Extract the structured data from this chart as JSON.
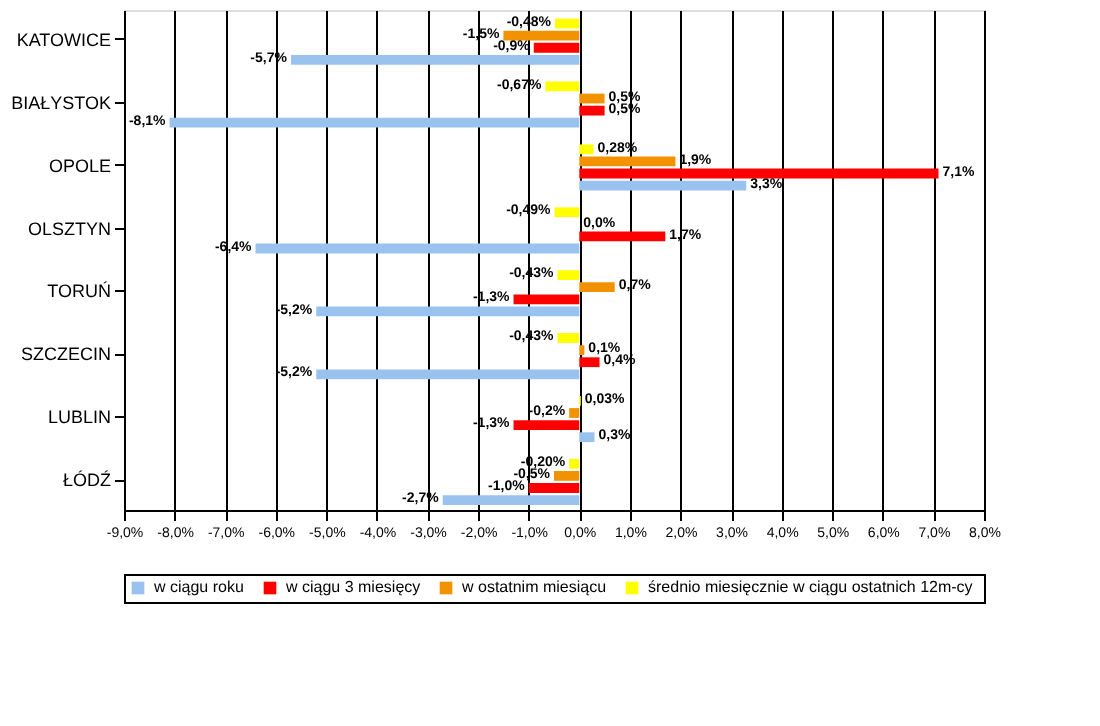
{
  "chart_data": {
    "type": "bar",
    "orientation": "horizontal",
    "categories": [
      "KATOWICE",
      "BIAŁYSTOK",
      "OPOLE",
      "OLSZTYN",
      "TORUŃ",
      "SZCZECIN",
      "LUBLIN",
      "ŁÓDŹ"
    ],
    "series": [
      {
        "name": "w  ciągu roku",
        "color": "#99c2ee",
        "values": [
          -5.7,
          -8.1,
          3.3,
          -6.4,
          -5.2,
          -5.2,
          0.3,
          -2.7
        ],
        "value_labels": [
          "-5,7%",
          "-8,1%",
          "3,3%",
          "-6,4%",
          "-5,2%",
          "-5,2%",
          "0,3%",
          "-2,7%"
        ]
      },
      {
        "name": "w  ciągu 3 miesięcy",
        "color": "#ff0000",
        "values": [
          -0.9,
          0.5,
          7.1,
          1.7,
          -1.3,
          0.4,
          -1.3,
          -1.0
        ],
        "value_labels": [
          "-0,9%",
          "0,5%",
          "7,1%",
          "1,7%",
          "-1,3%",
          "0,4%",
          "-1,3%",
          "-1,0%"
        ]
      },
      {
        "name": "w  ostatnim miesiącu",
        "color": "#f39200",
        "values": [
          -1.5,
          0.5,
          1.9,
          0.0,
          0.7,
          0.1,
          -0.2,
          -0.5
        ],
        "value_labels": [
          "-1,5%",
          "0,5%",
          "1,9%",
          "0,0%",
          "0,7%",
          "0,1%",
          "-0,2%",
          "-0,5%"
        ]
      },
      {
        "name": "średnio miesięcznie w  ciągu ostatnich 12m-cy",
        "color": "#ffff00",
        "values": [
          -0.48,
          -0.67,
          0.28,
          -0.49,
          -0.43,
          -0.43,
          0.03,
          -0.2
        ],
        "value_labels": [
          "-0,48%",
          "-0,67%",
          "0,28%",
          "-0,49%",
          "-0,43%",
          "-0,43%",
          "0,03%",
          "-0,20%"
        ]
      }
    ],
    "xlim": [
      -9,
      8
    ],
    "xticks": [
      {
        "value": -9,
        "label": "-9,0%"
      },
      {
        "value": -8,
        "label": "-8,0%"
      },
      {
        "value": -7,
        "label": "-7,0%"
      },
      {
        "value": -6,
        "label": "-6,0%"
      },
      {
        "value": -5,
        "label": "-5,0%"
      },
      {
        "value": -4,
        "label": "-4,0%"
      },
      {
        "value": -3,
        "label": "-3,0%"
      },
      {
        "value": -2,
        "label": "-2,0%"
      },
      {
        "value": -1,
        "label": "-1,0%"
      },
      {
        "value": 0,
        "label": "0,0%"
      },
      {
        "value": 1,
        "label": "1,0%"
      },
      {
        "value": 2,
        "label": "2,0%"
      },
      {
        "value": 3,
        "label": "3,0%"
      },
      {
        "value": 4,
        "label": "4,0%"
      },
      {
        "value": 5,
        "label": "5,0%"
      },
      {
        "value": 6,
        "label": "6,0%"
      },
      {
        "value": 7,
        "label": "7,0%"
      },
      {
        "value": 8,
        "label": "8,0%"
      }
    ],
    "grid": "x",
    "legend": "bottom"
  }
}
